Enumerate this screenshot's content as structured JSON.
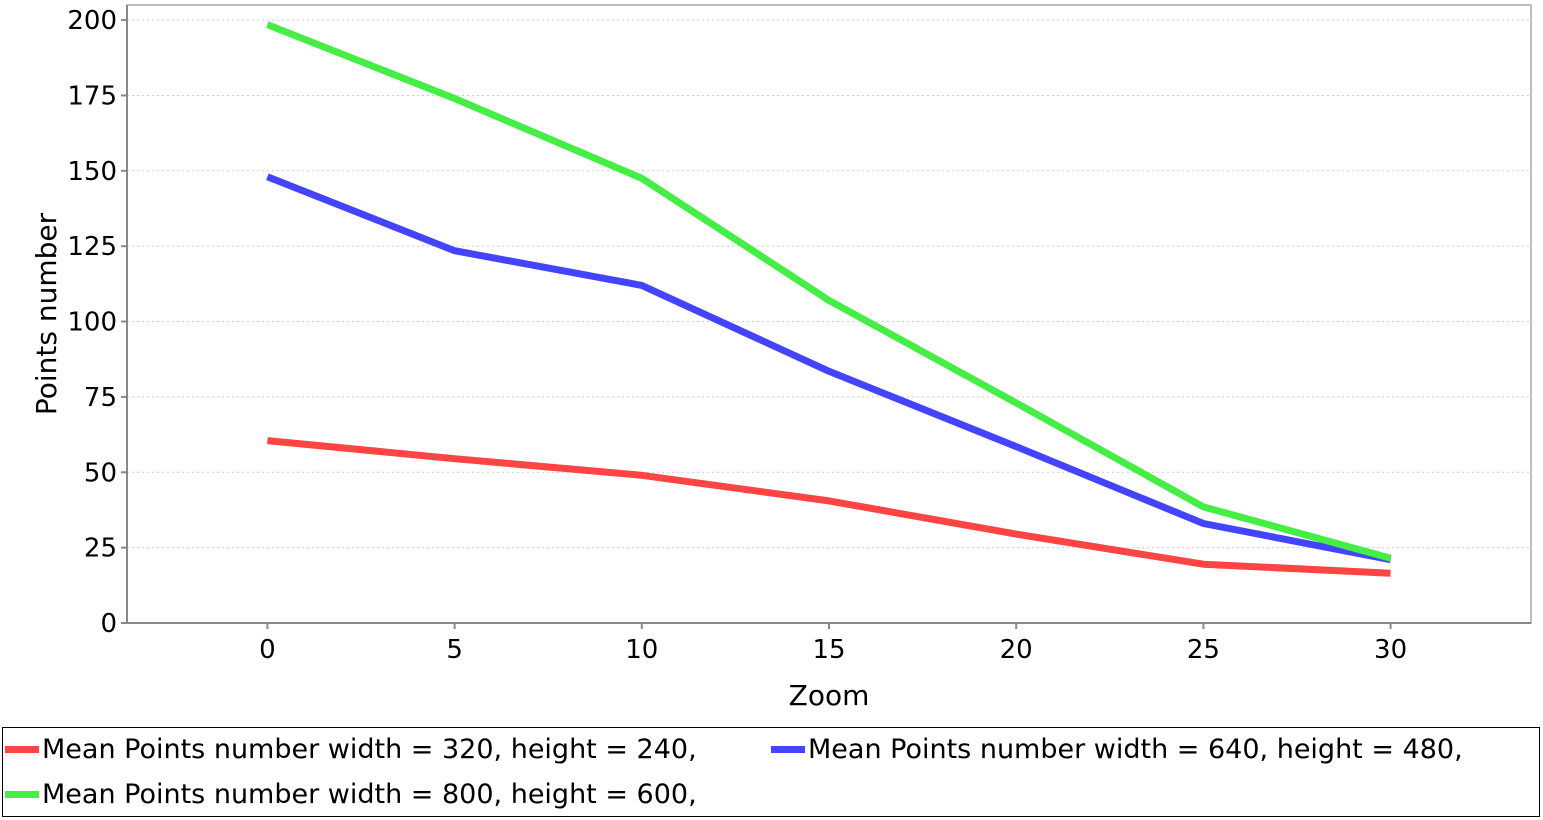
{
  "chart_data": {
    "type": "line",
    "xlabel": "Zoom",
    "ylabel": "Points number",
    "xlim": [
      -3.75,
      33.75
    ],
    "ylim": [
      0,
      205
    ],
    "xticks": [
      "0",
      "5",
      "10",
      "15",
      "20",
      "25",
      "30"
    ],
    "yticks": [
      "0",
      "25",
      "50",
      "75",
      "100",
      "125",
      "150",
      "175",
      "200"
    ],
    "grid": true,
    "legend_position": "bottom",
    "x": [
      0,
      5,
      10,
      15,
      20,
      25,
      30
    ],
    "series": [
      {
        "name": "Mean Points number width = 320, height = 240,",
        "color": "#ff4444",
        "values": [
          60.5,
          54.5,
          49,
          40.5,
          29.5,
          19.5,
          16.5
        ]
      },
      {
        "name": "Mean Points number width = 640, height = 480,",
        "color": "#4444ff",
        "values": [
          148,
          123.5,
          112,
          83.5,
          58.5,
          33,
          21
        ]
      },
      {
        "name": "Mean Points number width = 800, height = 600,",
        "color": "#44ee44",
        "values": [
          198.5,
          174,
          147.5,
          107,
          73,
          38.5,
          21.5
        ]
      }
    ]
  }
}
